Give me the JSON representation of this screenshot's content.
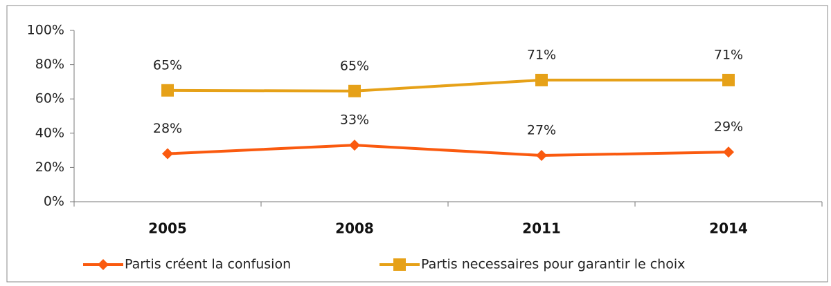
{
  "chart_data": {
    "type": "line",
    "categories": [
      "2005",
      "2008",
      "2011",
      "2014"
    ],
    "series": [
      {
        "name": "Partis créent la confusion",
        "color": "#fa5a0f",
        "marker": "diamond",
        "values": [
          28,
          33,
          27,
          29
        ],
        "value_labels": [
          "28%",
          "33%",
          "27%",
          "29%"
        ]
      },
      {
        "name": "Partis necessaires pour garantir le choix",
        "color": "#e6a118",
        "marker": "square",
        "values": [
          65,
          64.6,
          71,
          71
        ],
        "value_labels": [
          "65%",
          "65%",
          "71%",
          "71%"
        ]
      }
    ],
    "ylim": [
      0,
      100
    ],
    "yticks": [
      {
        "value": 0,
        "label": "0%"
      },
      {
        "value": 20,
        "label": "20%"
      },
      {
        "value": 40,
        "label": "40%"
      },
      {
        "value": 60,
        "label": "60%"
      },
      {
        "value": 80,
        "label": "80%"
      },
      {
        "value": 100,
        "label": "100%"
      }
    ],
    "grid": false,
    "legend": "bottom"
  }
}
